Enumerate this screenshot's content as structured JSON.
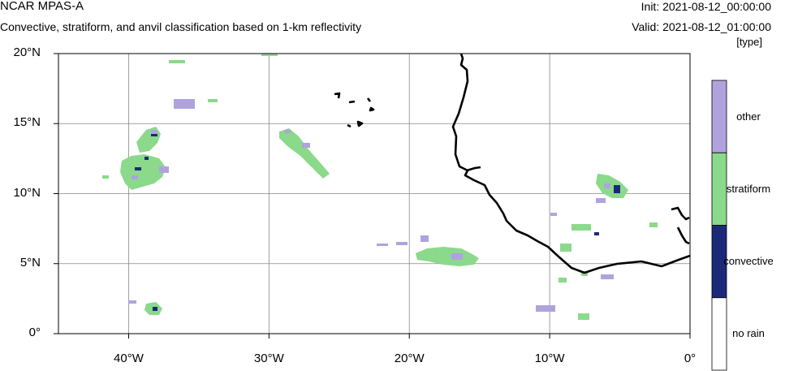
{
  "header": {
    "title": "NCAR MPAS-A",
    "subtitle": "Convective, stratiform, and anvil classification based on 1-km reflectivity",
    "init": "Init: 2021-08-12_00:00:00",
    "valid": "Valid: 2021-08-12_01:00:00",
    "units": "[type]"
  },
  "map": {
    "lon_range": [
      -45,
      0
    ],
    "lat_range": [
      0,
      20
    ],
    "lat_ticks": [
      {
        "value": 20,
        "label": "20°N"
      },
      {
        "value": 15,
        "label": "15°N"
      },
      {
        "value": 10,
        "label": "10°N"
      },
      {
        "value": 5,
        "label": "5°N"
      },
      {
        "value": 0,
        "label": "0°"
      }
    ],
    "lon_ticks": [
      {
        "value": -40,
        "label": "40°W"
      },
      {
        "value": -30,
        "label": "30°W"
      },
      {
        "value": -20,
        "label": "20°W"
      },
      {
        "value": -10,
        "label": "10°W"
      },
      {
        "value": 0,
        "label": "0°"
      }
    ],
    "gridlines": true
  },
  "colorbar": {
    "categories": [
      {
        "label": "other",
        "color": "#b0a3dd"
      },
      {
        "label": "stratiform",
        "color": "#8bd98b"
      },
      {
        "label": "convective",
        "color": "#1b2a78"
      },
      {
        "label": "no rain",
        "color": "#ffffff"
      }
    ]
  }
}
